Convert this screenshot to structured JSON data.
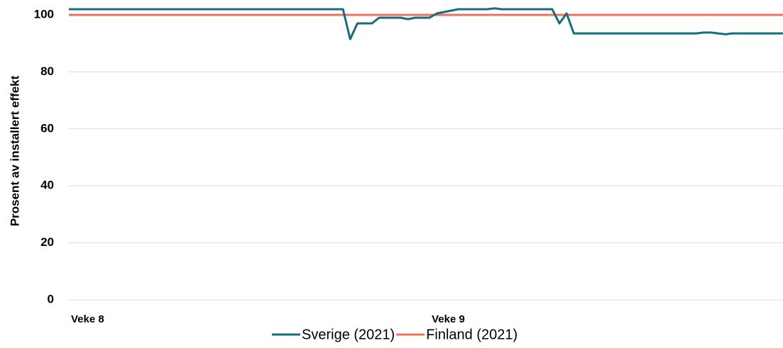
{
  "chart_data": {
    "type": "line",
    "y_label": "Prosent av installert effekt",
    "categories": [
      "Veke 8",
      null,
      null,
      null,
      null,
      null,
      null,
      null,
      null,
      null,
      null,
      null,
      null,
      null,
      null,
      null,
      null,
      null,
      null,
      null,
      null,
      null,
      null,
      null,
      null,
      null,
      null,
      null,
      null,
      null,
      null,
      null,
      null,
      null,
      null,
      null,
      null,
      null,
      null,
      null,
      null,
      null,
      null,
      null,
      null,
      null,
      null,
      null,
      null,
      null,
      "Veke 9",
      null,
      null,
      null,
      null,
      null,
      null,
      null,
      null,
      null,
      null,
      null,
      null,
      null,
      null,
      null,
      null,
      null,
      null,
      null,
      null,
      null,
      null,
      null,
      null,
      null,
      null,
      null,
      null,
      null,
      null,
      null,
      null,
      null,
      null,
      null,
      null,
      null,
      null,
      null,
      null,
      null,
      null,
      null,
      null,
      null,
      null,
      null,
      null,
      null
    ],
    "series": [
      {
        "name": "Sverige (2021)",
        "color": "#1b6a7e",
        "values": [
          102,
          102,
          102,
          102,
          102,
          102,
          102,
          102,
          102,
          102,
          102,
          102,
          102,
          102,
          102,
          102,
          102,
          102,
          102,
          102,
          102,
          102,
          102,
          102,
          102,
          102,
          102,
          102,
          102,
          102,
          102,
          102,
          102,
          102,
          102,
          102,
          102,
          102,
          102,
          91.5,
          97,
          97,
          97,
          99,
          99,
          99,
          99,
          98.5,
          99,
          99,
          99,
          100.5,
          101,
          101.5,
          102,
          102,
          102,
          102,
          102,
          102.3,
          102,
          102,
          102,
          102,
          102,
          102,
          102,
          102,
          97,
          100.5,
          93.5,
          93.5,
          93.5,
          93.5,
          93.5,
          93.5,
          93.5,
          93.5,
          93.5,
          93.5,
          93.5,
          93.5,
          93.5,
          93.5,
          93.5,
          93.5,
          93.5,
          93.5,
          93.8,
          93.8,
          93.5,
          93.2,
          93.5,
          93.5,
          93.5,
          93.5,
          93.5,
          93.5,
          93.5,
          93.5
        ]
      },
      {
        "name": "Finland (2021)",
        "color": "#e8735e",
        "values": [
          100,
          100,
          100,
          100,
          100,
          100,
          100,
          100,
          100,
          100,
          100,
          100,
          100,
          100,
          100,
          100,
          100,
          100,
          100,
          100,
          100,
          100,
          100,
          100,
          100,
          100,
          100,
          100,
          100,
          100,
          100,
          100,
          100,
          100,
          100,
          100,
          100,
          100,
          100,
          100,
          100,
          100,
          100,
          100,
          100,
          100,
          100,
          100,
          100,
          100,
          100,
          100,
          100,
          100,
          100,
          100,
          100,
          100,
          100,
          100,
          100,
          100,
          100,
          100,
          100,
          100,
          100,
          100,
          100,
          100,
          100,
          100,
          100,
          100,
          100,
          100,
          100,
          100,
          100,
          100,
          100,
          100,
          100,
          100,
          100,
          100,
          100,
          100,
          100,
          100,
          100,
          100,
          100,
          100,
          100,
          100,
          100,
          100,
          100,
          100
        ]
      }
    ],
    "ylim": [
      0,
      100
    ],
    "yticks": [
      0,
      20,
      40,
      60,
      80,
      100
    ],
    "grid": true,
    "legend": "bottom"
  }
}
